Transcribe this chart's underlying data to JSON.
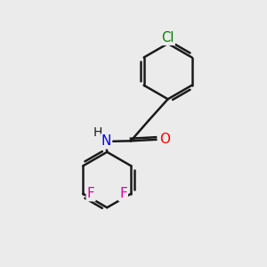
{
  "background_color": "#ebebeb",
  "bond_color": "#1a1a1a",
  "bond_width": 1.8,
  "atom_colors": {
    "Cl": "#008000",
    "O": "#ff0000",
    "N": "#0000ff",
    "F": "#dd00aa",
    "H": "#1a1a1a",
    "C": "#1a1a1a"
  },
  "font_size_atoms": 10.5,
  "figsize": [
    3.0,
    3.0
  ],
  "dpi": 100,
  "xlim": [
    0,
    10
  ],
  "ylim": [
    0,
    10
  ]
}
